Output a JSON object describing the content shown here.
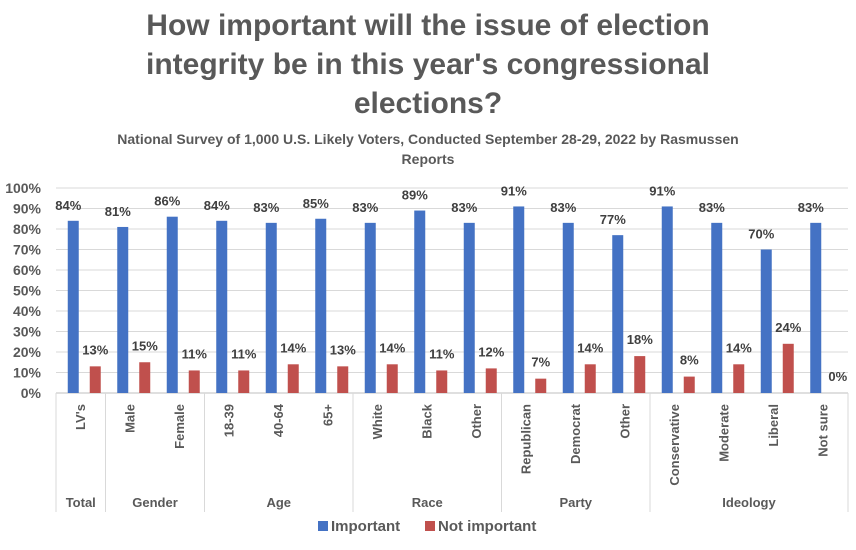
{
  "chart_data": {
    "type": "bar",
    "title": "How important will the issue of election integrity be in this year's congressional elections?",
    "title_lines": [
      "How important will the issue of election",
      "integrity be in this year's congressional",
      "elections?"
    ],
    "subtitle": "National Survey of 1,000 U.S. Likely Voters, Conducted September 28-29, 2022 by Rasmussen Reports",
    "subtitle_lines": [
      "National Survey of 1,000 U.S. Likely Voters, Conducted September 28-29, 2022 by Rasmussen",
      "Reports"
    ],
    "xlabel": "",
    "ylabel": "",
    "ylim": [
      0,
      100
    ],
    "yticks": [
      "0%",
      "10%",
      "20%",
      "30%",
      "40%",
      "50%",
      "60%",
      "70%",
      "80%",
      "90%",
      "100%"
    ],
    "grid": true,
    "legend_position": "bottom",
    "categories": [
      "LV's",
      "Male",
      "Female",
      "18-39",
      "40-64",
      "65+",
      "White",
      "Black",
      "Other",
      "Republican",
      "Democrat",
      "Other",
      "Conservative",
      "Moderate",
      "Liberal",
      "Not sure"
    ],
    "groups": [
      {
        "name": "Total",
        "count": 1
      },
      {
        "name": "Gender",
        "count": 2
      },
      {
        "name": "Age",
        "count": 3
      },
      {
        "name": "Race",
        "count": 3
      },
      {
        "name": "Party",
        "count": 3
      },
      {
        "name": "Ideology",
        "count": 4
      }
    ],
    "series": [
      {
        "name": "Important",
        "color": "#4472C4",
        "values": [
          84,
          81,
          86,
          84,
          83,
          85,
          83,
          89,
          83,
          91,
          83,
          77,
          91,
          83,
          70,
          83
        ]
      },
      {
        "name": "Not important",
        "color": "#C0504D",
        "values": [
          13,
          15,
          11,
          11,
          14,
          13,
          14,
          11,
          12,
          7,
          14,
          18,
          8,
          14,
          24,
          0
        ]
      }
    ],
    "value_suffix": "%"
  }
}
